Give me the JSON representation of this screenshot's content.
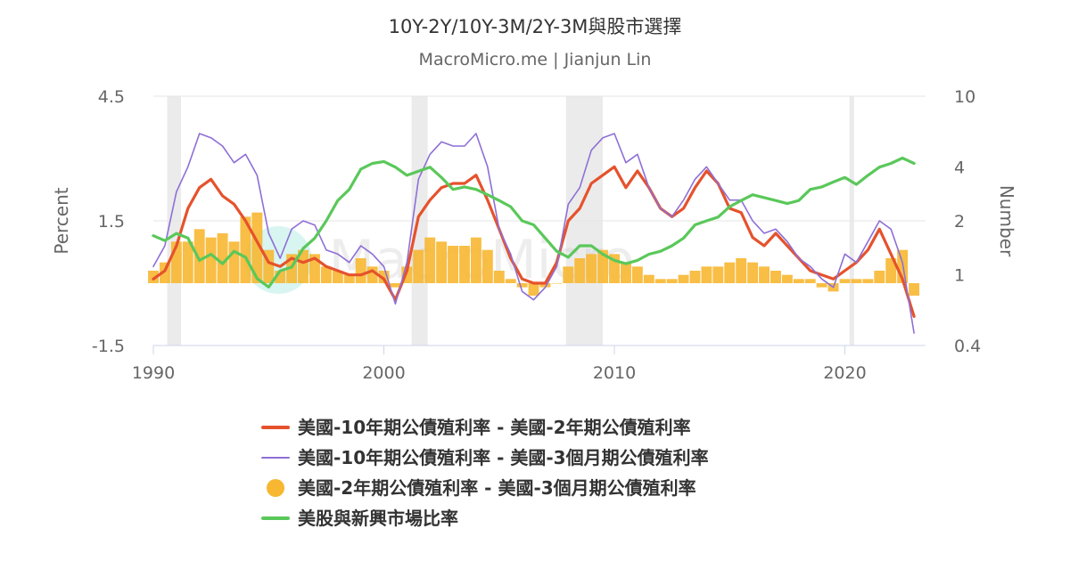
{
  "chart_data": {
    "type": "line",
    "title": "10Y-2Y/10Y-3M/2Y-3M與股市選擇",
    "subtitle": "MacroMicro.me | Jianjun Lin",
    "watermark": "MacroMicro",
    "x_ticks": [
      "1990",
      "2000",
      "2010",
      "2020"
    ],
    "x_range": [
      1990,
      2023.5
    ],
    "y_left": {
      "label": "Percent",
      "range": [
        -1.5,
        4.5
      ],
      "ticks": [
        "4.5",
        "1.5",
        "-1.5"
      ]
    },
    "y_right": {
      "label": "Number",
      "scale": "log",
      "range": [
        0.4,
        10
      ],
      "ticks": [
        "10",
        "4",
        "2",
        "1",
        "0.4"
      ]
    },
    "recessions": [
      [
        1990.6,
        1991.2
      ],
      [
        2001.2,
        2001.9
      ],
      [
        2007.9,
        2009.5
      ],
      [
        2020.2,
        2020.4
      ]
    ],
    "series": [
      {
        "name": "美國-10年期公債殖利率 - 美國-2年期公債殖利率",
        "type": "line",
        "axis": "left",
        "color": "#e5522c",
        "x": [
          1990.0,
          1990.5,
          1991.0,
          1991.5,
          1992.0,
          1992.5,
          1993.0,
          1993.5,
          1994.0,
          1994.5,
          1995.0,
          1995.5,
          1996.0,
          1996.5,
          1997.0,
          1997.5,
          1998.0,
          1998.5,
          1999.0,
          1999.5,
          2000.0,
          2000.5,
          2001.0,
          2001.5,
          2002.0,
          2002.5,
          2003.0,
          2003.5,
          2004.0,
          2004.5,
          2005.0,
          2005.5,
          2006.0,
          2006.5,
          2007.0,
          2007.5,
          2008.0,
          2008.5,
          2009.0,
          2009.5,
          2010.0,
          2010.5,
          2011.0,
          2011.5,
          2012.0,
          2012.5,
          2013.0,
          2013.5,
          2014.0,
          2014.5,
          2015.0,
          2015.5,
          2016.0,
          2016.5,
          2017.0,
          2017.5,
          2018.0,
          2018.5,
          2019.0,
          2019.5,
          2020.0,
          2020.5,
          2021.0,
          2021.5,
          2022.0,
          2022.5,
          2023.0
        ],
        "y": [
          0.1,
          0.3,
          0.9,
          1.8,
          2.3,
          2.5,
          2.1,
          1.9,
          1.5,
          1.0,
          0.5,
          0.4,
          0.6,
          0.5,
          0.6,
          0.4,
          0.3,
          0.2,
          0.2,
          0.3,
          0.1,
          -0.4,
          0.3,
          1.6,
          2.0,
          2.3,
          2.4,
          2.4,
          2.6,
          2.0,
          1.3,
          0.6,
          0.1,
          0.0,
          0.0,
          0.5,
          1.5,
          1.8,
          2.4,
          2.6,
          2.8,
          2.3,
          2.7,
          2.3,
          1.8,
          1.6,
          1.8,
          2.3,
          2.7,
          2.4,
          1.8,
          1.7,
          1.1,
          0.9,
          1.2,
          0.9,
          0.6,
          0.3,
          0.2,
          0.1,
          0.3,
          0.5,
          0.8,
          1.3,
          0.7,
          0.1,
          -0.8
        ]
      },
      {
        "name": "美國-10年期公債殖利率 - 美國-3個月期公債殖利率",
        "type": "line",
        "axis": "left",
        "color": "#8e6fd6",
        "x": [
          1990.0,
          1990.5,
          1991.0,
          1991.5,
          1992.0,
          1992.5,
          1993.0,
          1993.5,
          1994.0,
          1994.5,
          1995.0,
          1995.5,
          1996.0,
          1996.5,
          1997.0,
          1997.5,
          1998.0,
          1998.5,
          1999.0,
          1999.5,
          2000.0,
          2000.5,
          2001.0,
          2001.5,
          2002.0,
          2002.5,
          2003.0,
          2003.5,
          2004.0,
          2004.5,
          2005.0,
          2005.5,
          2006.0,
          2006.5,
          2007.0,
          2007.5,
          2008.0,
          2008.5,
          2009.0,
          2009.5,
          2010.0,
          2010.5,
          2011.0,
          2011.5,
          2012.0,
          2012.5,
          2013.0,
          2013.5,
          2014.0,
          2014.5,
          2015.0,
          2015.5,
          2016.0,
          2016.5,
          2017.0,
          2017.5,
          2018.0,
          2018.5,
          2019.0,
          2019.5,
          2020.0,
          2020.5,
          2021.0,
          2021.5,
          2022.0,
          2022.5,
          2023.0
        ],
        "y": [
          0.4,
          0.9,
          2.2,
          2.8,
          3.6,
          3.5,
          3.3,
          2.9,
          3.1,
          2.6,
          1.2,
          0.6,
          1.3,
          1.5,
          1.4,
          0.8,
          0.7,
          0.5,
          0.9,
          0.7,
          0.4,
          -0.5,
          0.5,
          2.5,
          3.1,
          3.4,
          3.3,
          3.3,
          3.6,
          2.8,
          1.3,
          0.7,
          -0.2,
          -0.4,
          -0.1,
          0.4,
          1.9,
          2.3,
          3.2,
          3.5,
          3.6,
          2.9,
          3.1,
          2.3,
          1.8,
          1.6,
          2.0,
          2.5,
          2.8,
          2.4,
          2.0,
          2.0,
          1.5,
          1.2,
          1.3,
          1.0,
          0.6,
          0.4,
          0.1,
          -0.1,
          0.7,
          0.5,
          1.0,
          1.5,
          1.3,
          0.5,
          -1.2
        ]
      },
      {
        "name": "美國-2年期公債殖利率 - 美國-3個月期公債殖利率",
        "type": "bar",
        "axis": "left",
        "color": "#f7b731",
        "x": [
          1990.0,
          1990.5,
          1991.0,
          1991.5,
          1992.0,
          1992.5,
          1993.0,
          1993.5,
          1994.0,
          1994.5,
          1995.0,
          1995.5,
          1996.0,
          1996.5,
          1997.0,
          1997.5,
          1998.0,
          1998.5,
          1999.0,
          1999.5,
          2000.0,
          2000.5,
          2001.0,
          2001.5,
          2002.0,
          2002.5,
          2003.0,
          2003.5,
          2004.0,
          2004.5,
          2005.0,
          2005.5,
          2006.0,
          2006.5,
          2007.0,
          2007.5,
          2008.0,
          2008.5,
          2009.0,
          2009.5,
          2010.0,
          2010.5,
          2011.0,
          2011.5,
          2012.0,
          2012.5,
          2013.0,
          2013.5,
          2014.0,
          2014.5,
          2015.0,
          2015.5,
          2016.0,
          2016.5,
          2017.0,
          2017.5,
          2018.0,
          2018.5,
          2019.0,
          2019.5,
          2020.0,
          2020.5,
          2021.0,
          2021.5,
          2022.0,
          2022.5,
          2023.0
        ],
        "y": [
          0.3,
          0.5,
          1.0,
          1.0,
          1.3,
          1.1,
          1.2,
          1.0,
          1.6,
          1.7,
          0.8,
          0.3,
          0.7,
          0.8,
          0.7,
          0.4,
          0.3,
          0.2,
          0.6,
          0.4,
          0.3,
          -0.1,
          0.4,
          0.8,
          1.1,
          1.0,
          0.9,
          0.9,
          1.1,
          0.8,
          0.3,
          0.1,
          -0.1,
          -0.3,
          -0.1,
          0.0,
          0.4,
          0.6,
          0.7,
          0.8,
          0.7,
          0.5,
          0.4,
          0.2,
          0.1,
          0.1,
          0.2,
          0.3,
          0.4,
          0.4,
          0.5,
          0.6,
          0.5,
          0.4,
          0.3,
          0.2,
          0.1,
          0.1,
          -0.1,
          -0.2,
          0.1,
          0.1,
          0.1,
          0.3,
          0.6,
          0.8,
          -0.3
        ]
      },
      {
        "name": "美股與新興市場比率",
        "type": "line",
        "axis": "right",
        "color": "#5ac85a",
        "x": [
          1990.0,
          1990.5,
          1991.0,
          1991.5,
          1992.0,
          1992.5,
          1993.0,
          1993.5,
          1994.0,
          1994.5,
          1995.0,
          1995.5,
          1996.0,
          1996.5,
          1997.0,
          1997.5,
          1998.0,
          1998.5,
          1999.0,
          1999.5,
          2000.0,
          2000.5,
          2001.0,
          2001.5,
          2002.0,
          2002.5,
          2003.0,
          2003.5,
          2004.0,
          2004.5,
          2005.0,
          2005.5,
          2006.0,
          2006.5,
          2007.0,
          2007.5,
          2008.0,
          2008.5,
          2009.0,
          2009.5,
          2010.0,
          2010.5,
          2011.0,
          2011.5,
          2012.0,
          2012.5,
          2013.0,
          2013.5,
          2014.0,
          2014.5,
          2015.0,
          2015.5,
          2016.0,
          2016.5,
          2017.0,
          2017.5,
          2018.0,
          2018.5,
          2019.0,
          2019.5,
          2020.0,
          2020.5,
          2021.0,
          2021.5,
          2022.0,
          2022.5,
          2023.0
        ],
        "y": [
          1.65,
          1.55,
          1.7,
          1.6,
          1.2,
          1.3,
          1.15,
          1.35,
          1.25,
          0.95,
          0.85,
          1.05,
          1.1,
          1.4,
          1.6,
          2.0,
          2.6,
          3.0,
          3.9,
          4.2,
          4.3,
          4.0,
          3.6,
          3.8,
          4.0,
          3.5,
          3.0,
          3.1,
          3.0,
          2.8,
          2.6,
          2.4,
          2.0,
          1.9,
          1.6,
          1.35,
          1.25,
          1.45,
          1.45,
          1.3,
          1.2,
          1.15,
          1.2,
          1.3,
          1.35,
          1.45,
          1.6,
          1.9,
          2.0,
          2.1,
          2.4,
          2.6,
          2.8,
          2.7,
          2.6,
          2.5,
          2.6,
          3.0,
          3.1,
          3.3,
          3.5,
          3.2,
          3.6,
          4.0,
          4.2,
          4.5,
          4.2
        ]
      }
    ]
  },
  "legend": [
    {
      "label": "美國-10年期公債殖利率 - 美國-2年期公債殖利率",
      "symbol": "line",
      "color": "#e5522c"
    },
    {
      "label": "美國-10年期公債殖利率 - 美國-3個月期公債殖利率",
      "symbol": "thin-line",
      "color": "#8e6fd6"
    },
    {
      "label": "美國-2年期公債殖利率 - 美國-3個月期公債殖利率",
      "symbol": "dot",
      "color": "#f7b731"
    },
    {
      "label": "美股與新興市場比率",
      "symbol": "line",
      "color": "#5ac85a"
    }
  ]
}
